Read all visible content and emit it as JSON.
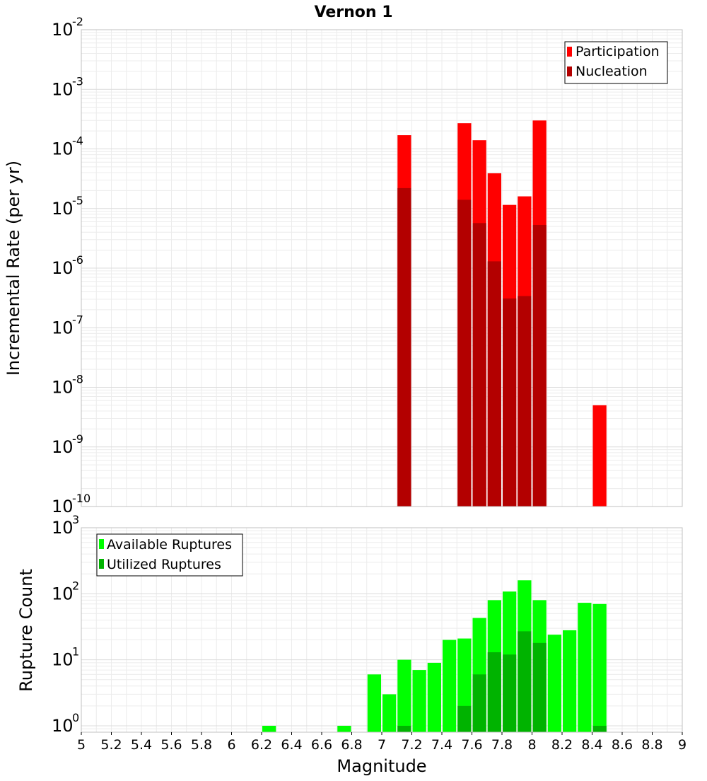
{
  "chart_data": [
    {
      "type": "bar",
      "title": "Vernon 1",
      "ylabel": "Incremental Rate (per yr)",
      "xlabel": "",
      "yscale": "log",
      "ylim": [
        1e-10,
        0.01
      ],
      "xlim": [
        5,
        9
      ],
      "bin_width": 0.1,
      "y_ticks": [
        {
          "base": "10",
          "exp": "-10"
        },
        {
          "base": "10",
          "exp": "-9"
        },
        {
          "base": "10",
          "exp": "-8"
        },
        {
          "base": "10",
          "exp": "-7"
        },
        {
          "base": "10",
          "exp": "-6"
        },
        {
          "base": "10",
          "exp": "-5"
        },
        {
          "base": "10",
          "exp": "-4"
        },
        {
          "base": "10",
          "exp": "-3"
        },
        {
          "base": "10",
          "exp": "-2"
        }
      ],
      "legend_position": "top-right",
      "series": [
        {
          "name": "Participation",
          "color": "#ff0000",
          "x": [
            7.15,
            7.55,
            7.65,
            7.75,
            7.85,
            7.95,
            8.05,
            8.45
          ],
          "values": [
            0.00017,
            0.00027,
            0.00014,
            3.9e-05,
            1.15e-05,
            1.6e-05,
            0.0003,
            5e-09
          ]
        },
        {
          "name": "Nucleation",
          "color": "#b30000",
          "x": [
            7.15,
            7.55,
            7.65,
            7.75,
            7.85,
            7.95,
            8.05
          ],
          "values": [
            2.2e-05,
            1.4e-05,
            5.7e-06,
            1.3e-06,
            3.1e-07,
            3.4e-07,
            5.3e-06
          ]
        }
      ]
    },
    {
      "type": "bar",
      "title": "",
      "ylabel": "Rupture Count",
      "xlabel": "Magnitude",
      "yscale": "log",
      "ylim": [
        0.8,
        1000
      ],
      "xlim": [
        5,
        9
      ],
      "bin_width": 0.1,
      "x_ticks": [
        "5",
        "5.2",
        "5.4",
        "5.6",
        "5.8",
        "6",
        "6.2",
        "6.4",
        "6.6",
        "6.8",
        "7",
        "7.2",
        "7.4",
        "7.6",
        "7.8",
        "8",
        "8.2",
        "8.4",
        "8.6",
        "8.8",
        "9"
      ],
      "y_ticks": [
        {
          "base": "10",
          "exp": "0"
        },
        {
          "base": "10",
          "exp": "1"
        },
        {
          "base": "10",
          "exp": "2"
        },
        {
          "base": "10",
          "exp": "3"
        }
      ],
      "legend_position": "top-left",
      "series": [
        {
          "name": "Available Ruptures",
          "color": "#00ff00",
          "x": [
            6.25,
            6.75,
            6.95,
            7.05,
            7.15,
            7.25,
            7.35,
            7.45,
            7.55,
            7.65,
            7.75,
            7.85,
            7.95,
            8.05,
            8.15,
            8.25,
            8.35,
            8.45
          ],
          "values": [
            1,
            1,
            6,
            3,
            10,
            7,
            9,
            20,
            21,
            43,
            80,
            108,
            160,
            80,
            24,
            28,
            73,
            70
          ]
        },
        {
          "name": "Utilized Ruptures",
          "color": "#00b300",
          "x": [
            7.15,
            7.55,
            7.65,
            7.75,
            7.85,
            7.95,
            8.05,
            8.45
          ],
          "values": [
            1,
            2,
            6,
            13,
            12,
            27,
            18,
            1
          ]
        }
      ]
    }
  ]
}
